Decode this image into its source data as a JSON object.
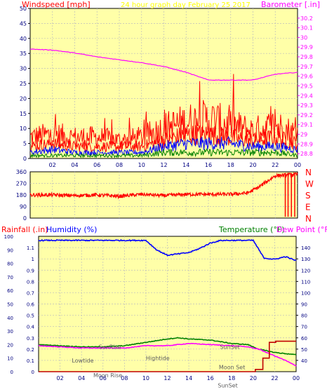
{
  "header": {
    "wind_label": "Windspeed [mph]",
    "title": "24 hour graph day",
    "date": "February 25 2017",
    "baro_label": "Barometer [.in]"
  },
  "colors": {
    "plot_bg": "#ffffa8",
    "frame": "#000000",
    "grid": "#bdbdbd",
    "tick_text": "#000080",
    "red": "#ff0000",
    "blue": "#0000ff",
    "green": "#008000",
    "magenta": "#ff00ff",
    "navy": "#000080",
    "dark_red": "#c00000",
    "title_yellow": "#ffff00"
  },
  "chart_data": [
    {
      "type": "line",
      "title": "24 hour graph day",
      "subtitle": "February 25 2017",
      "ylabel": "Windspeed [mph]",
      "y2label": "Barometer [.in]",
      "ylim": [
        0,
        50
      ],
      "y2lim": [
        28.75,
        30.3
      ],
      "y_ticks": [
        0,
        5,
        10,
        15,
        20,
        25,
        30,
        35,
        40,
        45,
        50
      ],
      "y2_ticks": [
        "28.8",
        "28.9",
        "29",
        "29.1",
        "29.2",
        "29.3",
        "29.4",
        "29.5",
        "29.6",
        "29.7",
        "29.8",
        "29.9",
        "30",
        "30.1",
        "30.2"
      ],
      "x_ticks": [
        "02",
        "04",
        "06",
        "08",
        "10",
        "12",
        "14",
        "16",
        "18",
        "20",
        "22",
        "00"
      ],
      "x": [
        0,
        2,
        4,
        6,
        8,
        10,
        12,
        14,
        16,
        18,
        20,
        22,
        24
      ],
      "series": [
        {
          "key": "gust_max",
          "color": "red",
          "values": [
            7,
            8,
            7,
            7,
            6,
            7,
            10,
            12,
            13,
            11,
            9,
            11,
            8
          ]
        },
        {
          "key": "gust",
          "color": "red",
          "values": [
            4,
            5,
            4,
            4,
            4,
            4,
            6,
            8,
            8,
            7,
            6,
            7,
            5
          ]
        },
        {
          "key": "wind",
          "color": "blue",
          "values": [
            2,
            3,
            2,
            2,
            2,
            2,
            4,
            5,
            5,
            5,
            4,
            4,
            3
          ]
        },
        {
          "key": "wind_min",
          "color": "green",
          "values": [
            1,
            1,
            1,
            1,
            1,
            1,
            2,
            2,
            2,
            2,
            2,
            2,
            1
          ]
        },
        {
          "key": "barometer",
          "color": "magenta",
          "axis": "y2",
          "values": [
            29.88,
            29.87,
            29.84,
            29.8,
            29.77,
            29.74,
            29.7,
            29.64,
            29.56,
            29.56,
            29.56,
            29.62,
            29.64
          ]
        }
      ]
    },
    {
      "type": "scatter",
      "ylim": [
        0,
        360
      ],
      "y_ticks": [
        0,
        90,
        180,
        270,
        360
      ],
      "y2_ticks": [
        "N",
        "W",
        "S",
        "E",
        "N"
      ],
      "x": [
        0,
        2,
        4,
        6,
        8,
        10,
        12,
        14,
        16,
        18,
        19.5,
        20.5,
        22,
        24
      ],
      "series": [
        {
          "key": "wind_direction",
          "color": "red",
          "values": [
            180,
            180,
            175,
            180,
            170,
            185,
            175,
            185,
            185,
            185,
            195,
            240,
            330,
            340
          ]
        }
      ]
    },
    {
      "type": "line",
      "ylabel": "Rainfall (.in)",
      "ylabel2": "Humidity (%)",
      "y2label": "Temperature (°F)",
      "y2label2": "Dew Point (°F)",
      "ylim_humidity": [
        0,
        100
      ],
      "ylim_rain": [
        0,
        1.2
      ],
      "ylim_temp": [
        30,
        150
      ],
      "y_ticks_humidity": [
        0,
        10,
        20,
        30,
        40,
        50,
        60,
        70,
        80,
        90,
        100
      ],
      "y_ticks_rain": [
        "0",
        "0.1",
        "0.2",
        "0.3",
        "0.4",
        "0.5",
        "0.6",
        "0.7",
        "0.8",
        "0.9",
        "1",
        "1.1"
      ],
      "y_ticks_temp": [
        40,
        50,
        60,
        70,
        80,
        90,
        100,
        110,
        120,
        130,
        140
      ],
      "x_ticks": [
        "02",
        "04",
        "06",
        "08",
        "10",
        "12",
        "14",
        "16",
        "18",
        "20",
        "22",
        "00"
      ],
      "series": [
        {
          "key": "humidity",
          "color": "blue",
          "axis": "humidity",
          "x": [
            0,
            2,
            4,
            6,
            8,
            10,
            11,
            12,
            13,
            14,
            15,
            16,
            17,
            18,
            19,
            20,
            21,
            22,
            23,
            24
          ],
          "values": [
            97,
            97,
            97,
            97,
            97,
            97,
            90,
            86,
            87,
            88,
            91,
            95,
            97,
            97,
            97,
            97,
            84,
            83,
            85,
            82
          ]
        },
        {
          "key": "temperature",
          "color": "green",
          "axis": "temp",
          "x": [
            0,
            2,
            4,
            6,
            8,
            10,
            12,
            13,
            14,
            16,
            18,
            19.5,
            20.5,
            22,
            24
          ],
          "values": [
            54,
            53,
            52,
            52,
            53,
            56,
            59,
            60,
            59,
            58,
            55,
            54,
            50,
            47,
            45
          ]
        },
        {
          "key": "dew_point",
          "color": "magenta",
          "axis": "temp",
          "x": [
            0,
            2,
            4,
            6,
            8,
            10,
            12,
            14,
            16,
            18,
            19.5,
            20.5,
            21.5,
            23,
            24
          ],
          "values": [
            53,
            52,
            51,
            51,
            51,
            53,
            53,
            55,
            54,
            53,
            52,
            50,
            46,
            40,
            35
          ]
        },
        {
          "key": "rainfall",
          "color": "dark_red",
          "axis": "rain",
          "x": [
            0,
            19.3,
            20.2,
            20.9,
            21.5,
            22.1,
            22.9,
            23.4,
            24
          ],
          "values": [
            0,
            0,
            0.02,
            0.12,
            0.26,
            0.27,
            0.27,
            0.27,
            0.27
          ]
        }
      ],
      "annotations": [
        {
          "text": "SunRise",
          "x": 5.6,
          "y": 0.22
        },
        {
          "text": "Lowtide",
          "x": 3.1,
          "y": 0.1
        },
        {
          "text": "Moon Rise",
          "x": 5.1,
          "y": -0.03
        },
        {
          "text": "Hightide",
          "x": 10.0,
          "y": 0.12
        },
        {
          "text": "SunSet",
          "x": 16.9,
          "y": 0.22
        },
        {
          "text": "Moon Set",
          "x": 16.8,
          "y": 0.04
        },
        {
          "text": "SunSet",
          "x": 16.7,
          "y": -0.12
        }
      ]
    }
  ]
}
